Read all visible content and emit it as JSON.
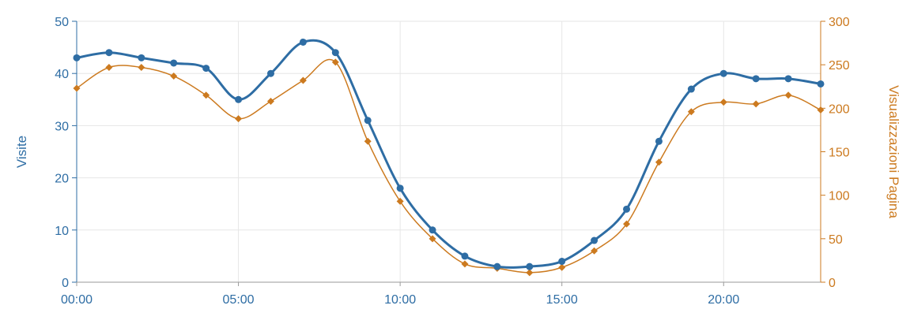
{
  "chart_data": {
    "type": "line",
    "x": [
      "00:00",
      "01:00",
      "02:00",
      "03:00",
      "04:00",
      "05:00",
      "06:00",
      "07:00",
      "08:00",
      "09:00",
      "10:00",
      "11:00",
      "12:00",
      "13:00",
      "14:00",
      "15:00",
      "16:00",
      "17:00",
      "18:00",
      "19:00",
      "20:00",
      "21:00",
      "22:00",
      "23:00"
    ],
    "x_tick_labels": [
      "00:00",
      "05:00",
      "10:00",
      "15:00",
      "20:00"
    ],
    "grid": true,
    "series": [
      {
        "name": "Visite",
        "axis": "left",
        "color": "#2e6da4",
        "marker": "circle",
        "values": [
          43,
          44,
          43,
          42,
          41,
          35,
          40,
          46,
          44,
          31,
          18,
          10,
          5,
          3,
          3,
          4,
          8,
          14,
          27,
          37,
          40,
          39,
          39,
          38
        ]
      },
      {
        "name": "Visualizzazioni Pagina",
        "axis": "right",
        "color": "#cc7a1f",
        "marker": "diamond",
        "values": [
          223,
          247,
          247,
          237,
          215,
          188,
          208,
          232,
          253,
          162,
          93,
          50,
          21,
          16,
          11,
          17,
          36,
          67,
          138,
          196,
          207,
          205,
          215,
          198
        ]
      }
    ],
    "y_left": {
      "label": "Visite",
      "ylim": [
        0,
        50
      ],
      "ticks": [
        "0",
        "10",
        "20",
        "30",
        "40",
        "50"
      ],
      "color": "#2e6da4"
    },
    "y_right": {
      "label": "Visualizzazioni Pagina",
      "ylim": [
        0,
        300
      ],
      "ticks": [
        "0",
        "50",
        "100",
        "150",
        "200",
        "250",
        "300"
      ],
      "color": "#cc7a1f"
    }
  }
}
